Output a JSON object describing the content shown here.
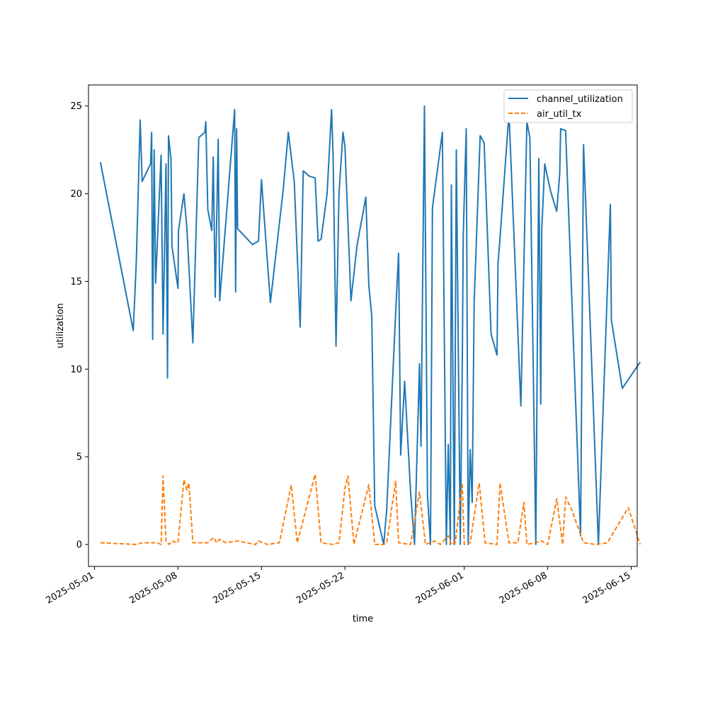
{
  "chart_data": {
    "type": "line",
    "xlabel": "time",
    "ylabel": "utilization",
    "x_ticks": [
      "2025-05-01",
      "2025-05-08",
      "2025-05-15",
      "2025-05-22",
      "2025-06-01",
      "2025-06-08",
      "2025-06-15"
    ],
    "y_ticks": [
      0,
      5,
      10,
      15,
      20,
      25
    ],
    "xlim": [
      "2025-04-30T12:00",
      "2025-06-15T12:00"
    ],
    "ylim": [
      -1.25,
      26.2
    ],
    "grid": false,
    "legend_position": "top-right",
    "series": [
      {
        "name": "channel_utilization",
        "color": "#1f77b4",
        "style": "solid",
        "points": [
          [
            "2025-05-01T12:00",
            21.8
          ],
          [
            "2025-05-04T06:00",
            12.2
          ],
          [
            "2025-05-04T12:00",
            16.0
          ],
          [
            "2025-05-04T20:00",
            24.2
          ],
          [
            "2025-05-05T00:00",
            20.7
          ],
          [
            "2025-05-05T17:00",
            21.7
          ],
          [
            "2025-05-05T19:00",
            23.5
          ],
          [
            "2025-05-05T21:00",
            11.7
          ],
          [
            "2025-05-06T00:00",
            22.5
          ],
          [
            "2025-05-06T03:00",
            14.9
          ],
          [
            "2025-05-06T14:00",
            22.2
          ],
          [
            "2025-05-06T18:00",
            12.0
          ],
          [
            "2025-05-07T00:00",
            21.7
          ],
          [
            "2025-05-07T03:00",
            9.5
          ],
          [
            "2025-05-07T05:00",
            23.3
          ],
          [
            "2025-05-07T10:00",
            22.0
          ],
          [
            "2025-05-07T12:00",
            17.0
          ],
          [
            "2025-05-08T00:00",
            14.6
          ],
          [
            "2025-05-08T01:00",
            17.9
          ],
          [
            "2025-05-08T12:00",
            20.0
          ],
          [
            "2025-05-08T18:00",
            18.0
          ],
          [
            "2025-05-09T06:00",
            11.5
          ],
          [
            "2025-05-09T18:00",
            23.2
          ],
          [
            "2025-05-10T06:00",
            23.5
          ],
          [
            "2025-05-10T08:00",
            24.1
          ],
          [
            "2025-05-10T12:00",
            19.1
          ],
          [
            "2025-05-10T20:00",
            17.9
          ],
          [
            "2025-05-10T23:00",
            22.1
          ],
          [
            "2025-05-11T03:00",
            14.1
          ],
          [
            "2025-05-11T09:00",
            23.1
          ],
          [
            "2025-05-11T12:00",
            13.9
          ],
          [
            "2025-05-12T18:00",
            24.8
          ],
          [
            "2025-05-12T20:00",
            14.4
          ],
          [
            "2025-05-12T22:00",
            23.7
          ],
          [
            "2025-05-13T00:00",
            18.0
          ],
          [
            "2025-05-14T06:00",
            17.1
          ],
          [
            "2025-05-14T18:00",
            17.3
          ],
          [
            "2025-05-15T00:00",
            20.8
          ],
          [
            "2025-05-15T18:00",
            13.8
          ],
          [
            "2025-05-16T20:00",
            20.3
          ],
          [
            "2025-05-17T06:00",
            23.5
          ],
          [
            "2025-05-17T18:00",
            20.7
          ],
          [
            "2025-05-18T06:00",
            12.4
          ],
          [
            "2025-05-18T12:00",
            21.3
          ],
          [
            "2025-05-19T00:00",
            21.0
          ],
          [
            "2025-05-19T12:00",
            20.9
          ],
          [
            "2025-05-19T18:00",
            17.3
          ],
          [
            "2025-05-20T00:00",
            17.4
          ],
          [
            "2025-05-20T12:00",
            20.0
          ],
          [
            "2025-05-20T21:00",
            24.8
          ],
          [
            "2025-05-21T00:00",
            22.3
          ],
          [
            "2025-05-21T06:00",
            11.3
          ],
          [
            "2025-05-21T12:00",
            20.0
          ],
          [
            "2025-05-21T20:00",
            23.5
          ],
          [
            "2025-05-22T00:00",
            22.7
          ],
          [
            "2025-05-22T12:00",
            13.9
          ],
          [
            "2025-05-23T00:00",
            17.0
          ],
          [
            "2025-05-23T18:00",
            19.8
          ],
          [
            "2025-05-24T00:00",
            14.8
          ],
          [
            "2025-05-24T06:00",
            13.0
          ],
          [
            "2025-05-24T12:00",
            2.2
          ],
          [
            "2025-05-25T06:00",
            0.0
          ],
          [
            "2025-05-25T12:00",
            2.0
          ],
          [
            "2025-05-26T06:00",
            13.2
          ],
          [
            "2025-05-26T12:00",
            16.6
          ],
          [
            "2025-05-26T16:00",
            5.1
          ],
          [
            "2025-05-27T00:00",
            9.3
          ],
          [
            "2025-05-27T12:00",
            3.0
          ],
          [
            "2025-05-27T20:00",
            0.0
          ],
          [
            "2025-05-28T06:00",
            10.3
          ],
          [
            "2025-05-28T09:00",
            5.6
          ],
          [
            "2025-05-28T16:00",
            25.0
          ],
          [
            "2025-05-28T22:00",
            2.8
          ],
          [
            "2025-05-29T04:00",
            0.0
          ],
          [
            "2025-05-29T08:00",
            19.2
          ],
          [
            "2025-05-30T04:00",
            23.5
          ],
          [
            "2025-05-30T12:00",
            0.0
          ],
          [
            "2025-05-30T16:00",
            5.7
          ],
          [
            "2025-05-30T20:00",
            0.0
          ],
          [
            "2025-05-30T22:00",
            20.5
          ],
          [
            "2025-05-31T04:00",
            0.0
          ],
          [
            "2025-05-31T08:00",
            22.5
          ],
          [
            "2025-05-31T16:00",
            0.0
          ],
          [
            "2025-05-31T20:00",
            10.1
          ],
          [
            "2025-05-31T22:00",
            17.6
          ],
          [
            "2025-06-01T04:00",
            23.7
          ],
          [
            "2025-06-01T08:00",
            0.0
          ],
          [
            "2025-06-01T12:00",
            5.4
          ],
          [
            "2025-06-01T16:00",
            2.4
          ],
          [
            "2025-06-01T20:00",
            13.8
          ],
          [
            "2025-06-02T08:00",
            23.3
          ],
          [
            "2025-06-02T16:00",
            22.9
          ],
          [
            "2025-06-03T06:00",
            12.0
          ],
          [
            "2025-06-03T18:00",
            10.8
          ],
          [
            "2025-06-03T20:00",
            16.0
          ],
          [
            "2025-06-04T00:00",
            17.5
          ],
          [
            "2025-06-04T18:00",
            24.6
          ],
          [
            "2025-06-05T18:00",
            7.9
          ],
          [
            "2025-06-06T06:00",
            24.1
          ],
          [
            "2025-06-06T12:00",
            23.2
          ],
          [
            "2025-06-07T00:00",
            0.0
          ],
          [
            "2025-06-07T06:00",
            22.0
          ],
          [
            "2025-06-07T10:00",
            8.0
          ],
          [
            "2025-06-07T12:00",
            18.0
          ],
          [
            "2025-06-07T18:00",
            21.7
          ],
          [
            "2025-06-08T06:00",
            20.1
          ],
          [
            "2025-06-08T18:00",
            19.0
          ],
          [
            "2025-06-09T00:00",
            21.1
          ],
          [
            "2025-06-09T02:00",
            23.7
          ],
          [
            "2025-06-09T12:00",
            23.6
          ],
          [
            "2025-06-10T18:00",
            0.5
          ],
          [
            "2025-06-11T00:00",
            22.8
          ],
          [
            "2025-06-12T06:00",
            0.0
          ],
          [
            "2025-06-12T18:00",
            9.8
          ],
          [
            "2025-06-13T06:00",
            19.4
          ],
          [
            "2025-06-13T08:00",
            12.8
          ],
          [
            "2025-06-14T06:00",
            8.9
          ],
          [
            "2025-06-15T18:00",
            10.4
          ]
        ]
      },
      {
        "name": "air_util_tx",
        "color": "#ff7f0e",
        "style": "dashed",
        "points": [
          [
            "2025-05-01T12:00",
            0.1
          ],
          [
            "2025-05-04T12:00",
            0.0
          ],
          [
            "2025-05-05T00:00",
            0.1
          ],
          [
            "2025-05-05T12:00",
            0.1
          ],
          [
            "2025-05-06T06:00",
            0.1
          ],
          [
            "2025-05-06T14:00",
            0.0
          ],
          [
            "2025-05-06T18:00",
            3.9
          ],
          [
            "2025-05-07T00:00",
            0.2
          ],
          [
            "2025-05-07T06:00",
            0.0
          ],
          [
            "2025-05-07T12:00",
            0.2
          ],
          [
            "2025-05-08T00:00",
            0.1
          ],
          [
            "2025-05-08T12:00",
            3.7
          ],
          [
            "2025-05-08T18:00",
            3.1
          ],
          [
            "2025-05-08T22:00",
            3.5
          ],
          [
            "2025-05-09T06:00",
            0.1
          ],
          [
            "2025-05-10T12:00",
            0.1
          ],
          [
            "2025-05-11T00:00",
            0.4
          ],
          [
            "2025-05-11T06:00",
            0.1
          ],
          [
            "2025-05-11T12:00",
            0.3
          ],
          [
            "2025-05-12T00:00",
            0.1
          ],
          [
            "2025-05-13T00:00",
            0.2
          ],
          [
            "2025-05-14T12:00",
            0.0
          ],
          [
            "2025-05-14T18:00",
            0.2
          ],
          [
            "2025-05-15T12:00",
            0.0
          ],
          [
            "2025-05-16T12:00",
            0.1
          ],
          [
            "2025-05-17T12:00",
            3.4
          ],
          [
            "2025-05-18T00:00",
            0.1
          ],
          [
            "2025-05-19T12:00",
            4.0
          ],
          [
            "2025-05-20T00:00",
            0.1
          ],
          [
            "2025-05-21T00:00",
            0.0
          ],
          [
            "2025-05-21T12:00",
            0.1
          ],
          [
            "2025-05-22T00:00",
            3.2
          ],
          [
            "2025-05-22T06:00",
            3.9
          ],
          [
            "2025-05-22T18:00",
            0.0
          ],
          [
            "2025-05-24T00:00",
            3.4
          ],
          [
            "2025-05-24T12:00",
            0.0
          ],
          [
            "2025-05-25T06:00",
            0.0
          ],
          [
            "2025-05-25T12:00",
            0.1
          ],
          [
            "2025-05-26T06:00",
            3.6
          ],
          [
            "2025-05-26T12:00",
            0.1
          ],
          [
            "2025-05-27T12:00",
            0.0
          ],
          [
            "2025-05-28T06:00",
            3.0
          ],
          [
            "2025-05-28T18:00",
            0.0
          ],
          [
            "2025-05-29T12:00",
            0.2
          ],
          [
            "2025-05-30T00:00",
            0.0
          ],
          [
            "2025-05-30T16:00",
            0.5
          ],
          [
            "2025-05-30T22:00",
            0.0
          ],
          [
            "2025-05-31T06:00",
            0.1
          ],
          [
            "2025-05-31T20:00",
            3.5
          ],
          [
            "2025-06-01T00:00",
            0.0
          ],
          [
            "2025-06-01T12:00",
            0.1
          ],
          [
            "2025-06-02T06:00",
            3.5
          ],
          [
            "2025-06-02T18:00",
            0.1
          ],
          [
            "2025-06-03T18:00",
            0.0
          ],
          [
            "2025-06-04T00:00",
            3.5
          ],
          [
            "2025-06-04T18:00",
            0.1
          ],
          [
            "2025-06-05T12:00",
            0.1
          ],
          [
            "2025-06-06T00:00",
            2.4
          ],
          [
            "2025-06-06T06:00",
            0.0
          ],
          [
            "2025-06-07T00:00",
            0.1
          ],
          [
            "2025-06-07T12:00",
            0.2
          ],
          [
            "2025-06-08T00:00",
            0.0
          ],
          [
            "2025-06-08T18:00",
            2.6
          ],
          [
            "2025-06-09T06:00",
            0.0
          ],
          [
            "2025-06-09T12:00",
            2.7
          ],
          [
            "2025-06-10T00:00",
            2.0
          ],
          [
            "2025-06-11T00:00",
            0.1
          ],
          [
            "2025-06-12T00:00",
            0.0
          ],
          [
            "2025-06-13T00:00",
            0.1
          ],
          [
            "2025-06-14T18:00",
            2.1
          ],
          [
            "2025-06-15T18:00",
            0.0
          ]
        ]
      }
    ]
  }
}
